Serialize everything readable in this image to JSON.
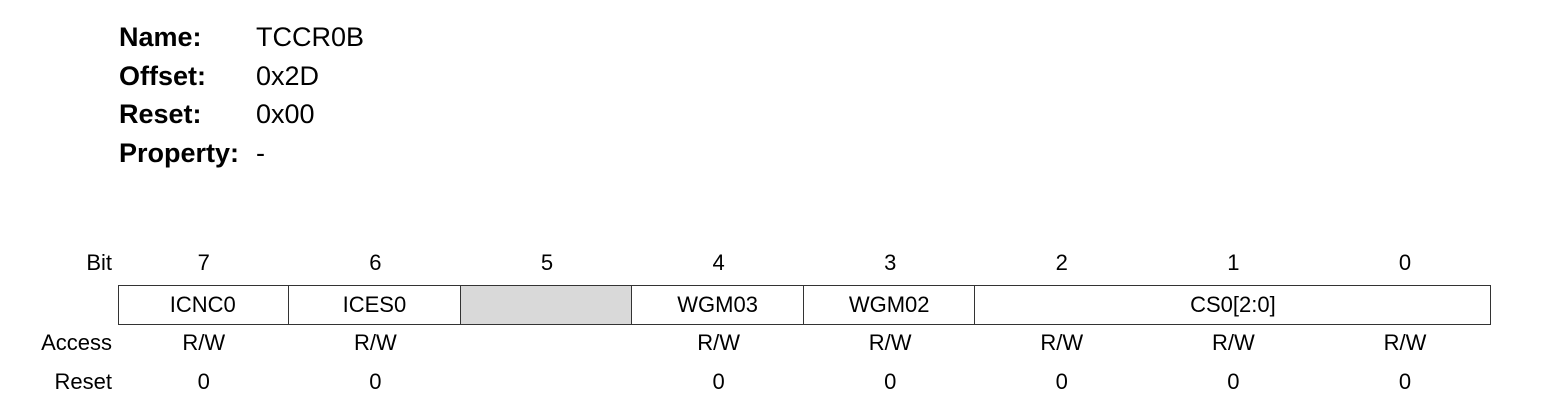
{
  "register": {
    "name_label": "Name:",
    "name": "TCCR0B",
    "offset_label": "Offset:",
    "offset": "0x2D",
    "reset_label": "Reset:",
    "reset": "0x00",
    "property_label": "Property:",
    "property": "-"
  },
  "table": {
    "bit_label": "Bit",
    "access_label": "Access",
    "reset_label": "Reset",
    "bits": [
      "7",
      "6",
      "5",
      "4",
      "3",
      "2",
      "1",
      "0"
    ],
    "fields": [
      {
        "name": "ICNC0",
        "span": 1,
        "reserved": false
      },
      {
        "name": "ICES0",
        "span": 1,
        "reserved": false
      },
      {
        "name": "",
        "span": 1,
        "reserved": true
      },
      {
        "name": "WGM03",
        "span": 1,
        "reserved": false
      },
      {
        "name": "WGM02",
        "span": 1,
        "reserved": false
      },
      {
        "name": "CS0[2:0]",
        "span": 3,
        "reserved": false
      }
    ],
    "access": [
      "R/W",
      "R/W",
      "",
      "R/W",
      "R/W",
      "R/W",
      "R/W",
      "R/W"
    ],
    "reset_values": [
      "0",
      "0",
      "",
      "0",
      "0",
      "0",
      "0",
      "0"
    ]
  }
}
